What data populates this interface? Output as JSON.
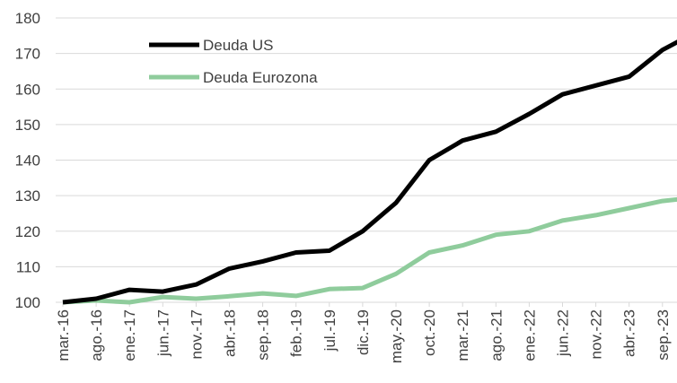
{
  "chart_data": {
    "type": "line",
    "categories": [
      "mar.-16",
      "ago.-16",
      "ene.-17",
      "jun.-17",
      "nov.-17",
      "abr.-18",
      "sep.-18",
      "feb.-19",
      "jul.-19",
      "dic.-19",
      "may.-20",
      "oct.-20",
      "mar.-21",
      "ago.-21",
      "ene.-22",
      "jun.-22",
      "nov.-22",
      "abr.-23",
      "sep.-23",
      null
    ],
    "series": [
      {
        "name": "Deuda US",
        "color": "#000000",
        "values": [
          100,
          101,
          103.5,
          103,
          105,
          109.5,
          111.5,
          114,
          114.5,
          120,
          128,
          140,
          145.5,
          148,
          153,
          158.5,
          161,
          163.5,
          171,
          176
        ]
      },
      {
        "name": "Deuda Eurozona",
        "color": "#8fcc9c",
        "values": [
          100,
          100.5,
          100,
          101.5,
          101,
          101.7,
          102.5,
          101.8,
          103.7,
          104,
          108,
          114,
          116,
          119,
          120,
          123,
          124.5,
          126.5,
          128.5,
          129.5
        ]
      }
    ],
    "ylim": [
      100,
      180
    ],
    "yticks": [
      100,
      110,
      120,
      130,
      140,
      150,
      160,
      170,
      180
    ],
    "grid": true,
    "legend": "top-left"
  }
}
